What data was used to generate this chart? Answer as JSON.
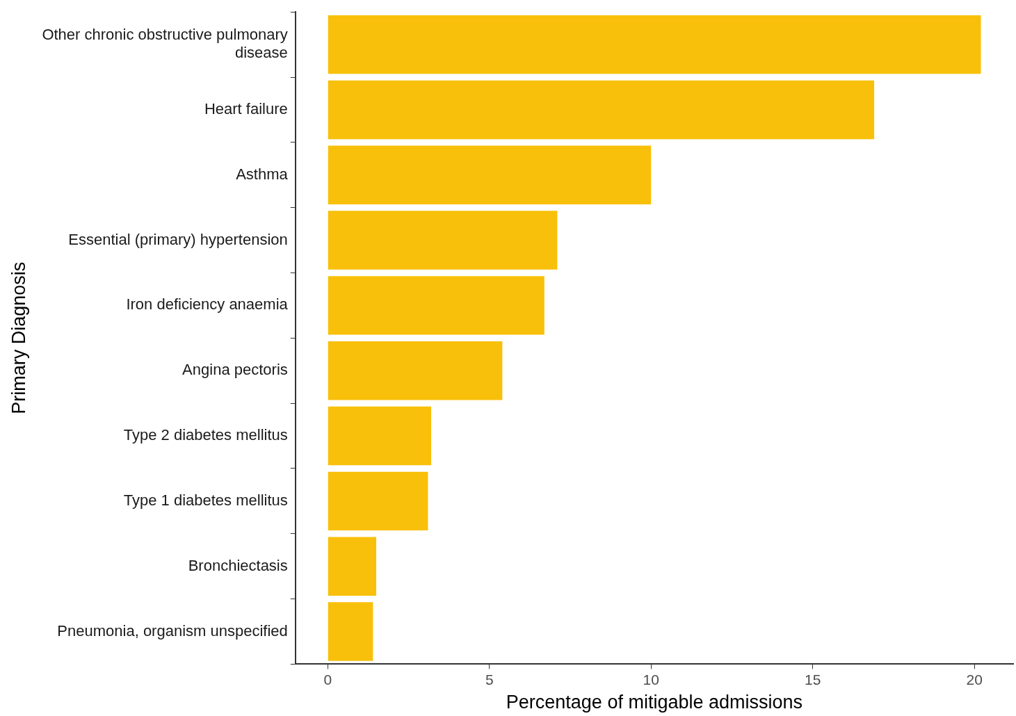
{
  "chart_data": {
    "type": "bar",
    "orientation": "horizontal",
    "xlabel": "Percentage of mitigable admissions",
    "ylabel": "Primary Diagnosis",
    "categories": [
      "Other chronic obstructive pulmonary disease",
      "Heart failure",
      "Asthma",
      "Essential (primary) hypertension",
      "Iron deficiency anaemia",
      "Angina pectoris",
      "Type 2 diabetes mellitus",
      "Type 1 diabetes mellitus",
      "Bronchiectasis",
      "Pneumonia, organism unspecified"
    ],
    "values": [
      20.2,
      16.9,
      10.0,
      7.1,
      6.7,
      5.4,
      3.2,
      3.1,
      1.5,
      1.4
    ],
    "color": "#f8c00a",
    "xlim": [
      -1.0,
      21.2
    ],
    "xticks": [
      0,
      5,
      10,
      15,
      20
    ],
    "grid": false,
    "legend": false
  }
}
